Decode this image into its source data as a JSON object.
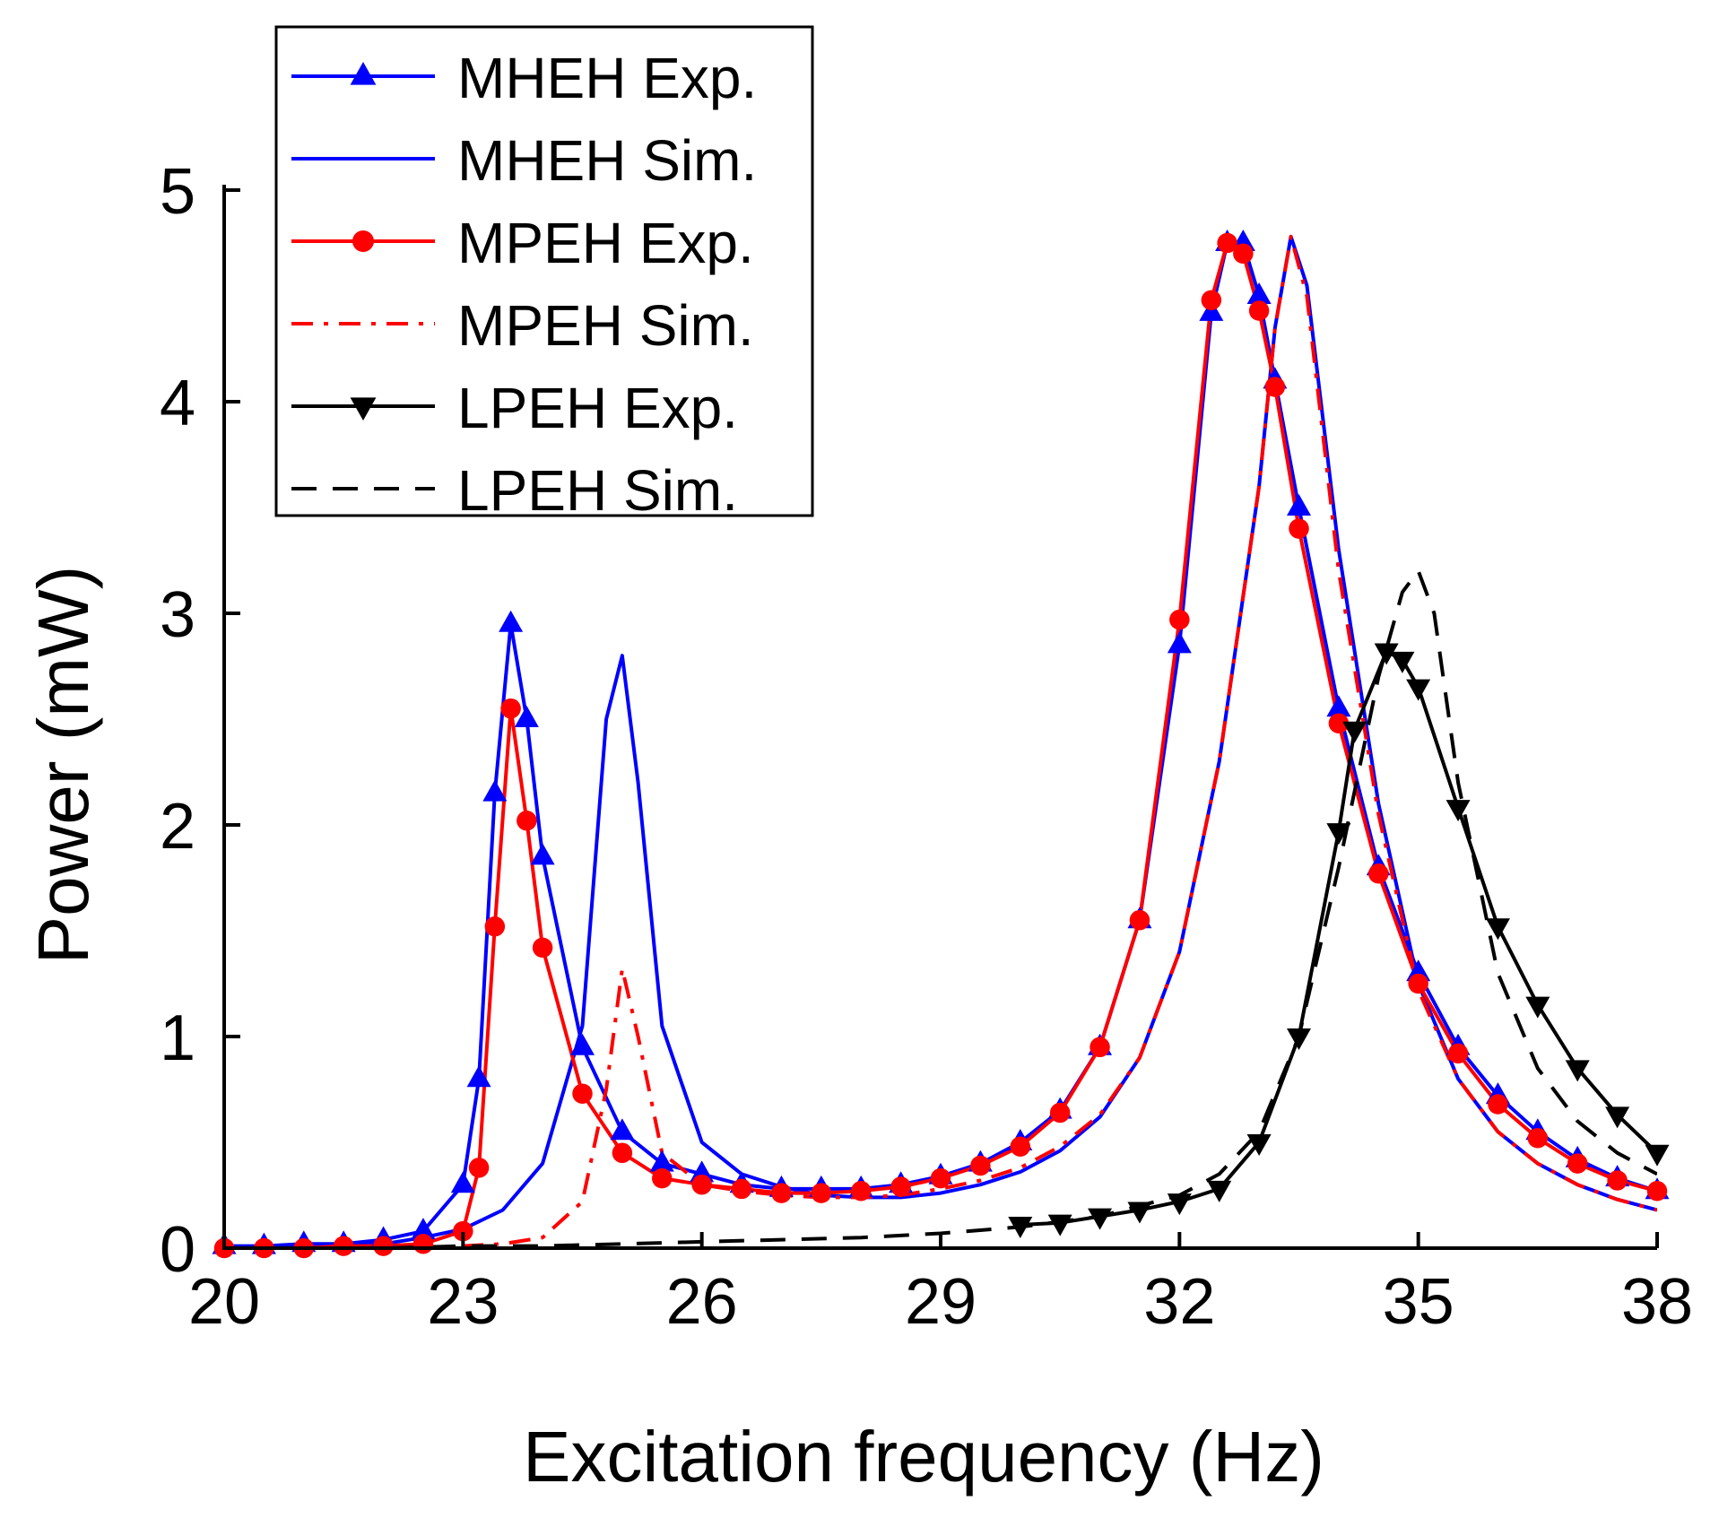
{
  "chart_data": {
    "type": "line",
    "title": "",
    "xlabel": "Excitation frequency (Hz)",
    "ylabel": "Power (mW)",
    "xlim": [
      20,
      38
    ],
    "ylim": [
      0,
      5
    ],
    "xticks": [
      "20",
      "23",
      "26",
      "29",
      "32",
      "35",
      "38"
    ],
    "yticks": [
      "0",
      "1",
      "2",
      "3",
      "4",
      "5"
    ],
    "grid": false,
    "legend_position": "top-left",
    "series": [
      {
        "name": "MHEH Exp.",
        "color": "#0000ff",
        "line": "solid",
        "marker": "triangle-up",
        "x": [
          20,
          20.5,
          21,
          21.5,
          22,
          22.5,
          23,
          23.2,
          23.4,
          23.6,
          23.8,
          24,
          24.5,
          25,
          25.5,
          26,
          26.5,
          27,
          27.5,
          28,
          28.5,
          29,
          29.5,
          30,
          30.5,
          31,
          31.5,
          32,
          32.4,
          32.6,
          32.8,
          33,
          33.2,
          33.5,
          34,
          34.5,
          35,
          35.5,
          36,
          36.5,
          37,
          37.5,
          38
        ],
        "y": [
          0.01,
          0.01,
          0.02,
          0.02,
          0.04,
          0.08,
          0.3,
          0.8,
          2.15,
          2.95,
          2.5,
          1.85,
          0.95,
          0.55,
          0.4,
          0.35,
          0.3,
          0.28,
          0.28,
          0.28,
          0.3,
          0.34,
          0.4,
          0.5,
          0.65,
          0.95,
          1.55,
          2.85,
          4.42,
          4.75,
          4.75,
          4.5,
          4.1,
          3.5,
          2.55,
          1.8,
          1.3,
          0.95,
          0.72,
          0.55,
          0.42,
          0.33,
          0.27
        ]
      },
      {
        "name": "MHEH Sim.",
        "color": "#0000ff",
        "line": "solid",
        "marker": "none",
        "x": [
          20,
          21,
          22,
          22.5,
          23,
          23.5,
          24,
          24.5,
          24.8,
          25,
          25.2,
          25.5,
          26,
          26.5,
          27,
          27.5,
          28,
          28.5,
          29,
          29.5,
          30,
          30.5,
          31,
          31.5,
          32,
          32.5,
          33,
          33.2,
          33.4,
          33.6,
          34,
          34.5,
          35,
          35.5,
          36,
          36.5,
          37,
          37.5,
          38
        ],
        "y": [
          0.0,
          0.01,
          0.02,
          0.05,
          0.09,
          0.18,
          0.4,
          1.05,
          2.5,
          2.8,
          2.2,
          1.05,
          0.5,
          0.35,
          0.29,
          0.25,
          0.24,
          0.24,
          0.26,
          0.3,
          0.36,
          0.46,
          0.62,
          0.9,
          1.4,
          2.3,
          3.6,
          4.35,
          4.78,
          4.55,
          3.3,
          2.1,
          1.25,
          0.8,
          0.55,
          0.4,
          0.3,
          0.23,
          0.18
        ]
      },
      {
        "name": "MPEH Exp.",
        "color": "#ff0000",
        "line": "solid",
        "marker": "circle",
        "x": [
          20,
          20.5,
          21,
          21.5,
          22,
          22.5,
          23,
          23.2,
          23.4,
          23.6,
          23.8,
          24,
          24.5,
          25,
          25.5,
          26,
          26.5,
          27,
          27.5,
          28,
          28.5,
          29,
          29.5,
          30,
          30.5,
          31,
          31.5,
          32,
          32.4,
          32.6,
          32.8,
          33,
          33.2,
          33.5,
          34,
          34.5,
          35,
          35.5,
          36,
          36.5,
          37,
          37.5,
          38
        ],
        "y": [
          0.0,
          0.0,
          0.0,
          0.01,
          0.01,
          0.02,
          0.08,
          0.38,
          1.52,
          2.55,
          2.02,
          1.42,
          0.73,
          0.45,
          0.33,
          0.3,
          0.28,
          0.26,
          0.26,
          0.27,
          0.29,
          0.33,
          0.39,
          0.48,
          0.64,
          0.95,
          1.55,
          2.97,
          4.48,
          4.75,
          4.7,
          4.43,
          4.07,
          3.4,
          2.48,
          1.77,
          1.25,
          0.92,
          0.68,
          0.52,
          0.4,
          0.32,
          0.27
        ]
      },
      {
        "name": "MPEH Sim.",
        "color": "#ff0000",
        "line": "dashdot",
        "marker": "none",
        "x": [
          20,
          21,
          22,
          23,
          23.5,
          24,
          24.5,
          24.8,
          25,
          25.2,
          25.5,
          26,
          26.5,
          27,
          27.5,
          28,
          28.5,
          29,
          29.5,
          30,
          30.5,
          31,
          31.5,
          32,
          32.5,
          33,
          33.2,
          33.4,
          33.6,
          34,
          34.5,
          35,
          35.5,
          36,
          36.5,
          37,
          37.5,
          38
        ],
        "y": [
          0.0,
          0.0,
          0.0,
          0.01,
          0.02,
          0.05,
          0.22,
          0.75,
          1.32,
          1.0,
          0.45,
          0.3,
          0.27,
          0.25,
          0.24,
          0.24,
          0.25,
          0.28,
          0.32,
          0.38,
          0.48,
          0.63,
          0.9,
          1.4,
          2.3,
          3.6,
          4.35,
          4.78,
          4.5,
          3.2,
          2.05,
          1.22,
          0.8,
          0.55,
          0.4,
          0.3,
          0.23,
          0.18
        ]
      },
      {
        "name": "LPEH Exp.",
        "color": "#000000",
        "line": "solid",
        "marker": "triangle-down",
        "x": [
          30,
          30.5,
          31,
          31.5,
          32,
          32.5,
          33,
          33.5,
          34,
          34.2,
          34.6,
          34.8,
          35,
          35.5,
          36,
          36.5,
          37,
          37.5,
          38
        ],
        "y": [
          0.11,
          0.12,
          0.15,
          0.18,
          0.22,
          0.28,
          0.5,
          1.0,
          1.97,
          2.45,
          2.82,
          2.78,
          2.65,
          2.08,
          1.52,
          1.15,
          0.85,
          0.63,
          0.45
        ]
      },
      {
        "name": "LPEH Sim.",
        "color": "#000000",
        "line": "dashed",
        "marker": "none",
        "x": [
          20,
          22,
          23,
          24,
          25,
          26,
          27,
          28,
          29,
          30,
          31,
          32,
          32.5,
          33,
          33.5,
          34,
          34.5,
          34.8,
          35,
          35.2,
          35.5,
          36,
          36.5,
          37,
          37.5,
          38
        ],
        "y": [
          0.0,
          0.0,
          0.01,
          0.01,
          0.02,
          0.03,
          0.04,
          0.05,
          0.07,
          0.1,
          0.15,
          0.25,
          0.35,
          0.55,
          1.0,
          1.8,
          2.7,
          3.1,
          3.2,
          3.0,
          2.2,
          1.3,
          0.85,
          0.6,
          0.45,
          0.35
        ]
      }
    ]
  }
}
